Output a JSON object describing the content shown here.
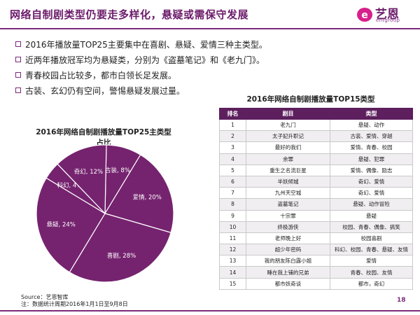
{
  "header": {
    "title": "网络自制剧类型仍要走多样化，悬疑或需保守发展",
    "logo_name": "艺恩",
    "logo_sub": "entgroup"
  },
  "bullets": [
    "2016年播放量TOP25主要集中在喜剧、悬疑、爱情三种主类型。",
    "近两年播放冠军均为悬疑类，分别为《盗墓笔记》和《老九门》。",
    "青春校园占比较多，都市白领长足发展。",
    "古装、玄幻仍有空间，警惕悬疑发展过量。"
  ],
  "chart_data": {
    "type": "pie",
    "title": "2016年网络自制剧播放量TOP25主类型占比",
    "unit": "%",
    "slices": [
      {
        "label": "古装",
        "value": 8,
        "text": "古装, 8%"
      },
      {
        "label": "爱情",
        "value": 20,
        "text": "爱情, 20%"
      },
      {
        "label": "喜剧",
        "value": 28,
        "text": "喜剧, 28%"
      },
      {
        "label": "悬疑",
        "value": 24,
        "text": "悬疑, 24%"
      },
      {
        "label": "科幻",
        "value": 4,
        "text": "科幻, 4%"
      },
      {
        "label": "奇幻",
        "value": 12,
        "text": "奇幻, 12%"
      }
    ],
    "colors": {
      "fill": "#75236f",
      "edge": "#ffffff",
      "label": "#ffffff",
      "label_dark": "#222222"
    }
  },
  "table": {
    "title": "2016年网络自制剧播放量TOP15类型",
    "headers": [
      "排名",
      "剧目",
      "类型"
    ],
    "rows": [
      [
        "1",
        "老九门",
        "悬疑、动作"
      ],
      [
        "2",
        "太子妃升职记",
        "古装、爱情、穿越"
      ],
      [
        "3",
        "最好的我们",
        "爱情、青春、校园"
      ],
      [
        "4",
        "余罪",
        "悬疑、犯罪"
      ],
      [
        "5",
        "重生之名流巨星",
        "爱情、偶像、励志"
      ],
      [
        "6",
        "半妖倾城",
        "奇幻、爱情"
      ],
      [
        "7",
        "九州天空城",
        "奇幻、爱情"
      ],
      [
        "8",
        "盗墓笔记",
        "悬疑、动作冒险"
      ],
      [
        "9",
        "十宗罪",
        "悬疑"
      ],
      [
        "10",
        "终极游侠",
        "校园、青春、偶像、搞笑"
      ],
      [
        "11",
        "老师晚上好",
        "校园喜剧"
      ],
      [
        "12",
        "超少年密码",
        "科幻、校园、青春、悬疑、友情"
      ],
      [
        "13",
        "我的朋友陈白露小姐",
        "爱情"
      ],
      [
        "14",
        "睡在我上铺的兄弟",
        "青春、校园、友情"
      ],
      [
        "15",
        "都市妖奇谈",
        "都市，奇幻"
      ]
    ]
  },
  "footer": {
    "source": "Source：艺恩智库",
    "note": "注：数据统计周期2016年1月1日至9月8日",
    "page_number": "18"
  },
  "colors": {
    "accent": "#7b2a7a",
    "header_fill": "#5d1f5d"
  }
}
